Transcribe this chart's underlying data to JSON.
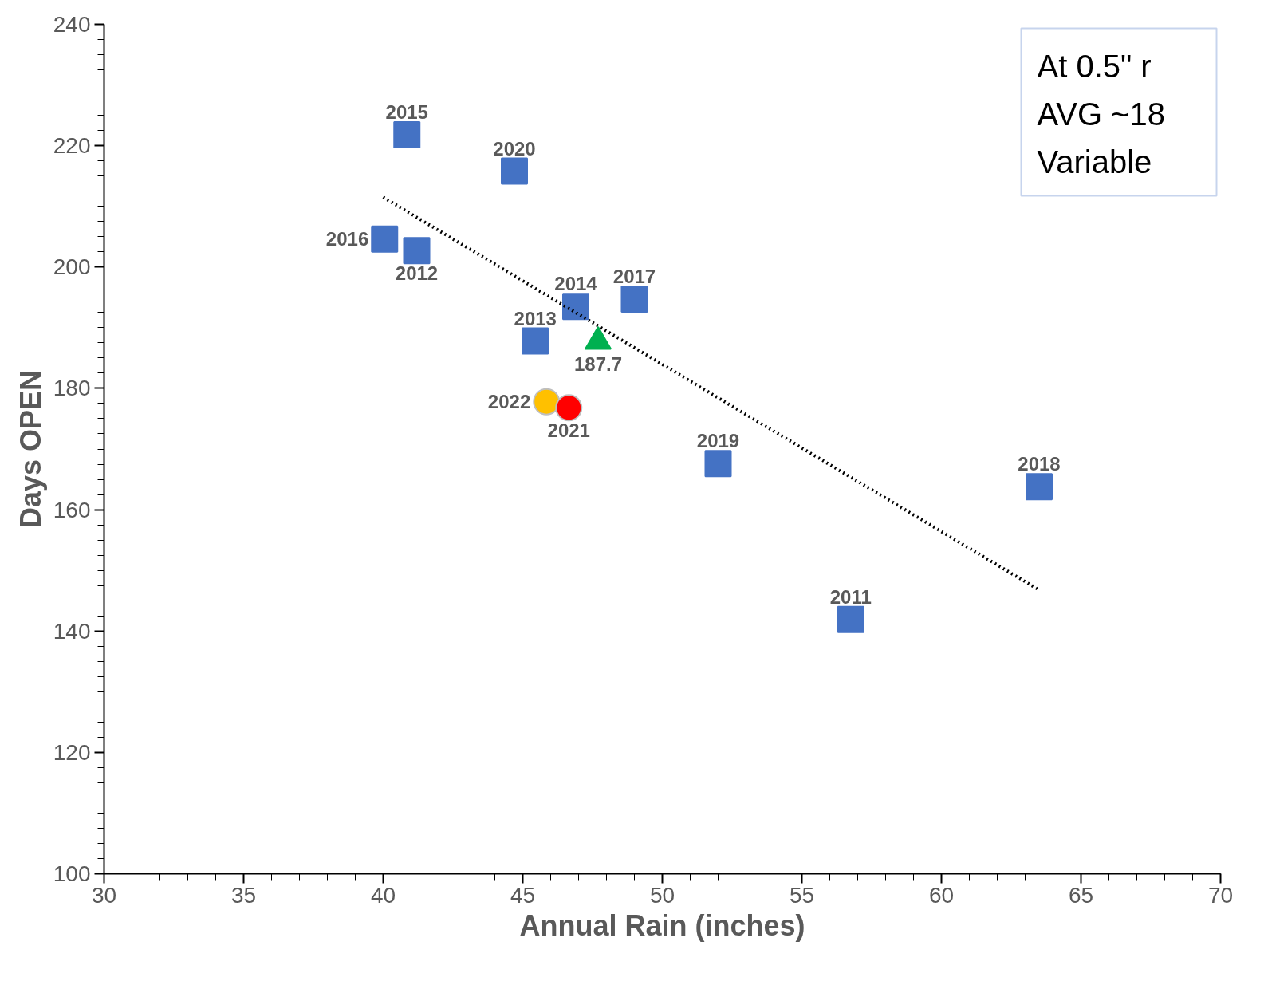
{
  "chart_data": {
    "type": "scatter",
    "xlabel": "Annual Rain (inches)",
    "ylabel": "Days OPEN",
    "xlim": [
      30,
      70
    ],
    "ylim": [
      100,
      240
    ],
    "xticks": [
      30,
      35,
      40,
      45,
      50,
      55,
      60,
      65,
      70
    ],
    "yticks": [
      100,
      120,
      140,
      160,
      180,
      200,
      220,
      240
    ],
    "annotations": [
      "At 0.5\" r",
      "AVG ~18",
      "Variable",
      {
        "text": "2015",
        "x": 40.85,
        "y": 221.8
      },
      {
        "text": "2020",
        "x": 44.7,
        "y": 215.8
      },
      {
        "text": "2016",
        "x": 40.05,
        "y": 204.6
      },
      {
        "text": "2012",
        "x": 41.2,
        "y": 202.7
      },
      {
        "text": "2014",
        "x": 46.9,
        "y": 193.5
      },
      {
        "text": "2017",
        "x": 49.0,
        "y": 194.7
      },
      {
        "text": "2013",
        "x": 45.45,
        "y": 187.8
      },
      {
        "text": "2019",
        "x": 52.0,
        "y": 167.6
      },
      {
        "text": "2018",
        "x": 63.5,
        "y": 163.8
      },
      {
        "text": "2011",
        "x": 56.75,
        "y": 141.9
      },
      {
        "text": "2022",
        "x": 45.85,
        "y": 177.8
      },
      {
        "text": "2021",
        "x": 46.65,
        "y": 176.8
      }
    ],
    "series": [
      {
        "marker": "square",
        "color": "#4472c4",
        "x": [
          40.85,
          44.7,
          40.05,
          41.2,
          46.9,
          49.0,
          45.45,
          52.0,
          63.5,
          56.75
        ],
        "values": [
          221.8,
          215.8,
          204.6,
          202.7,
          193.5,
          194.7,
          187.8,
          167.6,
          163.8,
          141.9
        ]
      },
      {
        "marker": "circle",
        "color": "#ffc000",
        "x": [
          45.85
        ],
        "values": [
          177.8
        ]
      },
      {
        "marker": "circle",
        "color": "#ff0000",
        "x": [
          46.65
        ],
        "values": [
          176.8
        ]
      },
      {
        "marker": "triangle",
        "color": "#00b050",
        "x": [
          47.7
        ],
        "values": [
          187.7
        ],
        "value_labels": [
          "187.7"
        ]
      },
      {
        "type": "line",
        "line_style": "dotted",
        "marker": "none",
        "color": "#000000",
        "x": [
          40.0,
          63.45
        ],
        "values": [
          211.5,
          146.9
        ]
      }
    ]
  }
}
